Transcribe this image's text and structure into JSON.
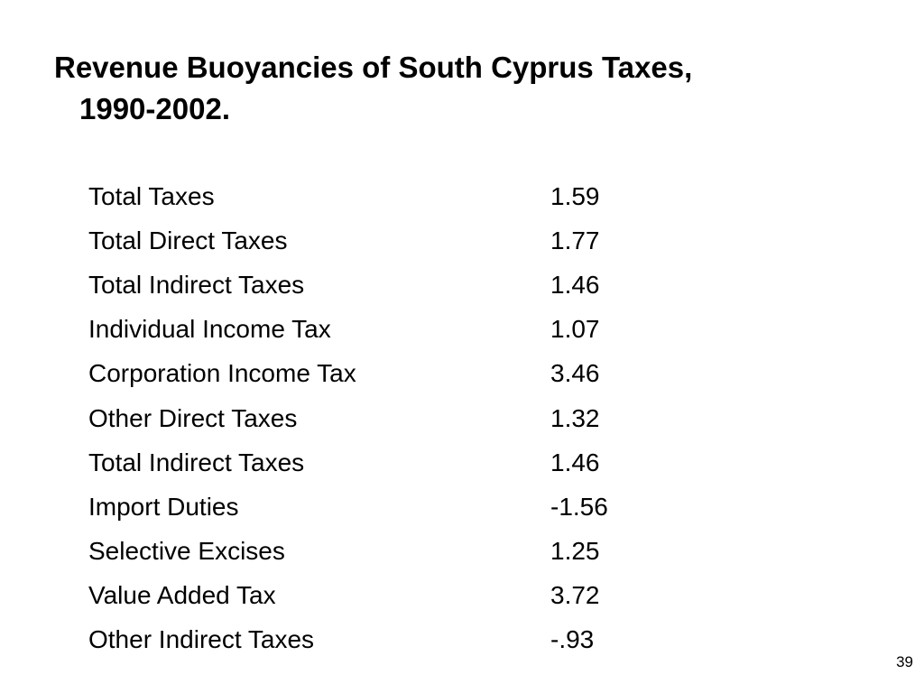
{
  "slide": {
    "title_line1": "Revenue Buoyancies of South Cyprus Taxes,",
    "title_line2": "1990-2002.",
    "rows": [
      {
        "name": "Total Taxes",
        "value": "1.59"
      },
      {
        "name": "Total Direct Taxes",
        "value": "1.77"
      },
      {
        "name": "Total Indirect Taxes",
        "value": "1.46"
      },
      {
        "name": "Individual Income Tax",
        "value": "1.07"
      },
      {
        "name": "Corporation Income Tax",
        "value": "3.46"
      },
      {
        "name": "Other Direct Taxes",
        "value": "1.32"
      },
      {
        "name": "Total Indirect Taxes",
        "value": "1.46"
      },
      {
        "name": "Import Duties",
        "value": "-1.56"
      },
      {
        "name": "Selective Excises",
        "value": "1.25"
      },
      {
        "name": "Value Added Tax",
        "value": "3.72"
      },
      {
        "name": "Other Indirect Taxes",
        "value": "-.93"
      }
    ],
    "page_number": "39"
  }
}
